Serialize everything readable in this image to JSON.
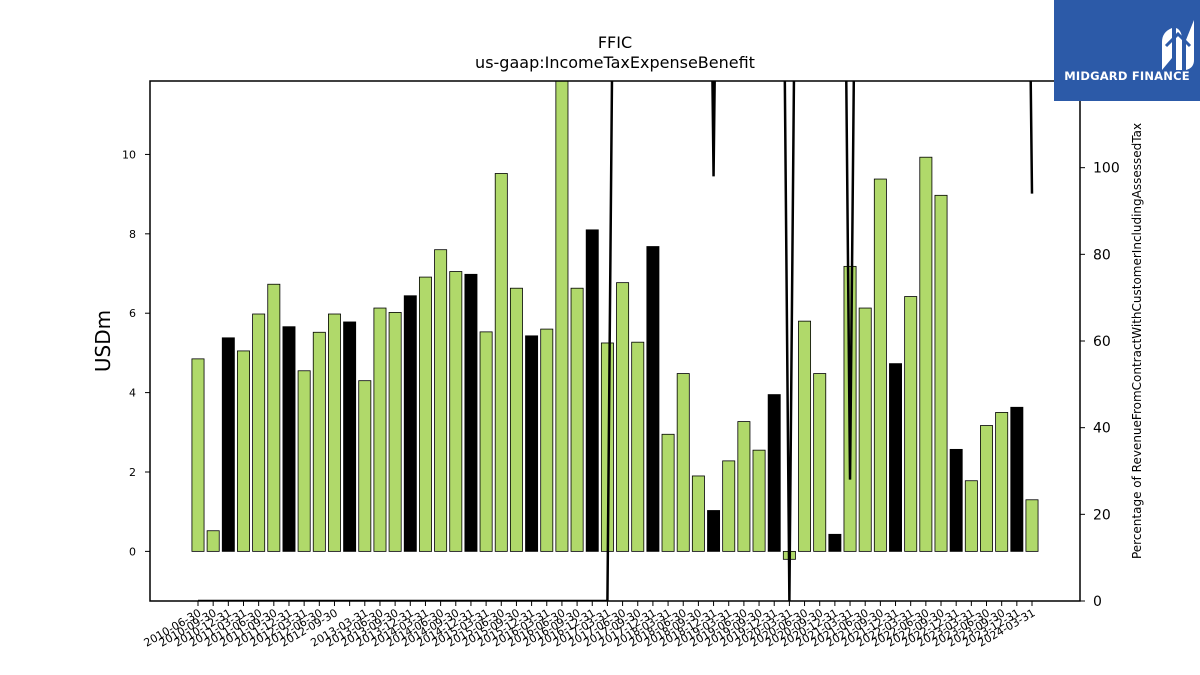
{
  "logo": {
    "text": "MIDGARD FINANCE",
    "color": "#2c5aa8"
  },
  "chart_data": {
    "type": "bar",
    "title": "FFIC",
    "subtitle": "us-gaap:IncomeTaxExpenseBenefit",
    "ylabel": "USDm",
    "y2label": "Percentage of RevenueFromContractWithCustomerIncludingAssessedTax",
    "ylim": [
      -1.25,
      11.85
    ],
    "y2lim": [
      0,
      120
    ],
    "yticks": [
      0,
      2,
      4,
      6,
      8,
      10
    ],
    "y2ticks": [
      0,
      20,
      40,
      60,
      80,
      100
    ],
    "colors": {
      "quarter": "#b0d96a",
      "year_end": "#000000",
      "line": "#000000"
    },
    "categories": [
      "2010-06-30",
      "2010-09-30",
      "2010-12-31",
      "2011-03-31",
      "2011-06-30",
      "2011-09-30",
      "2011-12-31",
      "2012-03-31",
      "2012-06-30",
      "2012-09-30",
      "2012-12-31",
      "2013-03-31",
      "2013-06-30",
      "2013-09-30",
      "2013-12-31",
      "2014-03-31",
      "2014-06-30",
      "2014-09-30",
      "2014-12-31",
      "2015-03-31",
      "2015-06-30",
      "2015-09-30",
      "2015-12-31",
      "2016-03-31",
      "2016-06-30",
      "2016-09-30",
      "2016-12-31",
      "2017-03-31",
      "2017-06-30",
      "2017-09-30",
      "2017-12-31",
      "2018-03-31",
      "2018-06-30",
      "2018-09-30",
      "2018-12-31",
      "2019-03-31",
      "2019-06-30",
      "2019-09-30",
      "2019-12-31",
      "2020-03-31",
      "2020-06-30",
      "2020-09-30",
      "2020-12-31",
      "2021-03-31",
      "2021-06-30",
      "2021-09-30",
      "2021-12-31",
      "2022-03-31",
      "2022-06-30",
      "2022-09-30",
      "2022-12-31",
      "2023-03-31",
      "2023-06-30",
      "2023-09-30",
      "2023-12-31",
      "2024-03-31"
    ],
    "xtick_labels_shown": [
      "2010-06-30",
      "2010-09-30",
      "2010-12-31",
      "2011-03-31",
      "2011-06-30",
      "2011-09-30",
      "2011-12-31",
      "2012-03-31",
      "2012-06-30",
      "2012-09-30",
      "2013-03-31",
      "2013-06-30",
      "2013-09-30",
      "2013-12-31",
      "2014-03-31",
      "2014-06-30",
      "2014-09-30",
      "2014-12-31",
      "2015-03-31",
      "2015-06-30",
      "2015-09-30",
      "2015-12-31",
      "2016-03-31",
      "2016-06-30",
      "2016-09-30",
      "2016-12-31",
      "2017-03-31",
      "2017-06-30",
      "2017-09-30",
      "2017-12-31",
      "2018-03-31",
      "2018-06-30",
      "2018-09-30",
      "2018-12-31",
      "2019-03-31",
      "2019-06-30",
      "2019-09-30",
      "2019-12-31",
      "2020-03-31",
      "2020-06-30",
      "2020-09-30",
      "2020-12-31",
      "2021-03-31",
      "2021-06-30",
      "2021-09-30",
      "2021-12-31",
      "2022-03-31",
      "2022-06-30",
      "2022-09-30",
      "2022-12-31",
      "2023-03-31",
      "2023-06-30",
      "2023-09-30",
      "2023-12-31",
      "2024-03-31"
    ],
    "values": [
      4.85,
      0.52,
      5.38,
      5.05,
      5.98,
      6.73,
      5.66,
      4.55,
      5.52,
      5.98,
      5.78,
      4.3,
      6.13,
      6.02,
      6.44,
      6.91,
      7.6,
      7.05,
      6.98,
      5.53,
      9.52,
      6.63,
      5.43,
      5.6,
      11.93,
      6.63,
      8.1,
      5.25,
      6.77,
      5.27,
      7.68,
      2.95,
      4.48,
      1.9,
      1.03,
      2.28,
      3.27,
      2.55,
      3.95,
      -0.2,
      5.8,
      4.48,
      0.43,
      7.18,
      6.13,
      9.38,
      4.73,
      6.42,
      9.93,
      8.97,
      2.57,
      1.78,
      3.17,
      3.5,
      3.63,
      1.3
    ],
    "year_end": [
      false,
      false,
      true,
      false,
      false,
      false,
      true,
      false,
      false,
      false,
      true,
      false,
      false,
      false,
      true,
      false,
      false,
      false,
      true,
      false,
      false,
      false,
      true,
      false,
      false,
      false,
      true,
      false,
      false,
      false,
      true,
      false,
      false,
      false,
      true,
      false,
      false,
      false,
      true,
      false,
      false,
      false,
      true,
      false,
      false,
      false,
      true,
      false,
      false,
      false,
      true,
      false,
      false,
      false,
      true,
      false
    ],
    "line_series": {
      "name": "Percentage of RevenueFromContractWithCustomerIncludingAssessedTax",
      "values": [
        0,
        0,
        0,
        0,
        0,
        0,
        0,
        0,
        0,
        0,
        0,
        0,
        0,
        0,
        0,
        0,
        0,
        0,
        0,
        0,
        0,
        0,
        0,
        0,
        0,
        0,
        0,
        0,
        400,
        400,
        400,
        400,
        400,
        400,
        98,
        400,
        400,
        400,
        400,
        0,
        400,
        400,
        400,
        28,
        400,
        400,
        400,
        400,
        400,
        400,
        400,
        400,
        400,
        400,
        400,
        94
      ]
    }
  }
}
